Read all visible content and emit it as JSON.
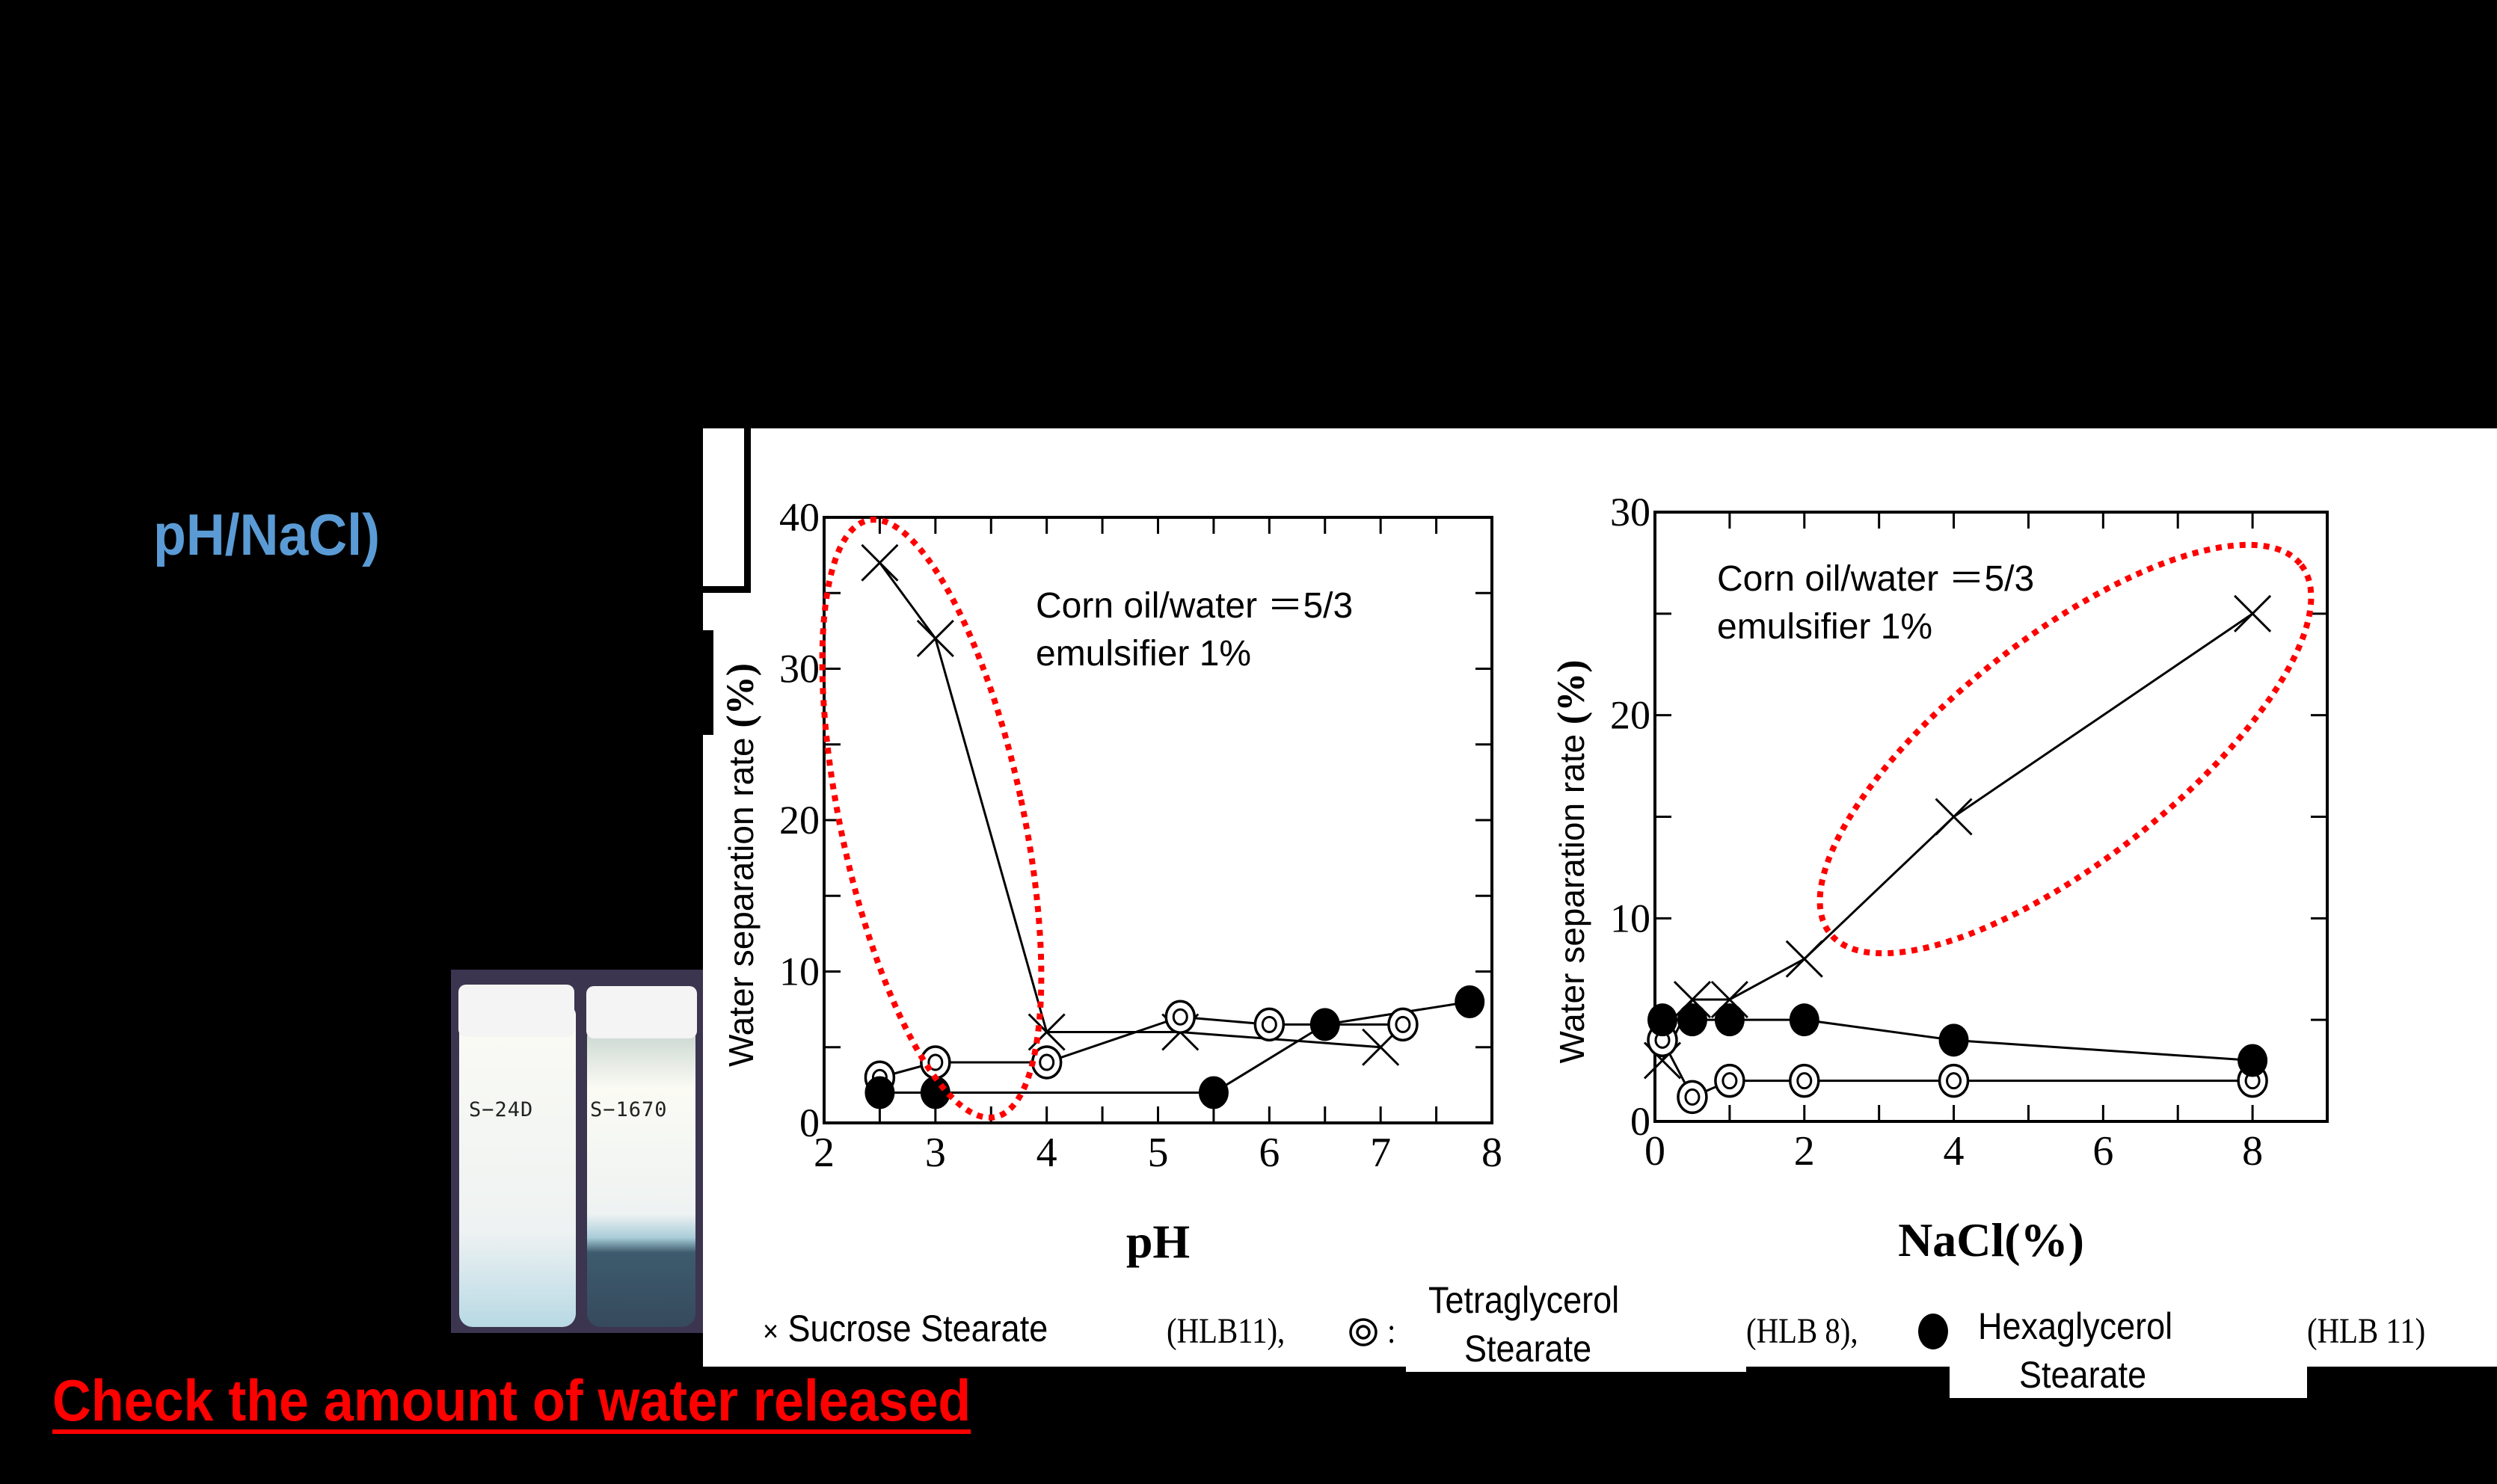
{
  "slide": {
    "subtitle": "pH/NaCl)",
    "caption": "Check the amount of water released",
    "colors": {
      "subtitle": "#5b9bd5",
      "caption": "#ff0000",
      "highlight_ellipse": "#ff0000",
      "background": "#000000"
    }
  },
  "photo": {
    "vials": [
      {
        "label": "S−24D",
        "state": "stable emulsion"
      },
      {
        "label": "S−1670",
        "state": "water separated at bottom"
      }
    ]
  },
  "legend": {
    "items": [
      {
        "symbol": "×",
        "name": "Sucrose Stearate",
        "hlb": "(HLB11),",
        "icon": "cross-marker-icon"
      },
      {
        "symbol": "◎",
        "name_line1": "Tetraglycerol",
        "name_line2": "Stearate",
        "hlb": "(HLB 8),",
        "icon": "double-circle-marker-icon"
      },
      {
        "symbol": "●",
        "name_line1": "Hexaglycerol",
        "name_line2": "Stearate",
        "hlb": "(HLB 11)",
        "icon": "filled-circle-marker-icon"
      }
    ],
    "sep_colon": ":"
  },
  "chart_data": [
    {
      "type": "line",
      "title": "",
      "annotation_line1": "Corn oil/water ＝5/3",
      "annotation_line2": "emulsifier 1%",
      "xlabel": "pH",
      "ylabel": "Water separation rate",
      "ylabel_unit": "(%)",
      "xlim": [
        2,
        8
      ],
      "ylim": [
        0,
        40
      ],
      "xticks": [
        "2",
        "3",
        "4",
        "5",
        "6",
        "7",
        "8"
      ],
      "yticks": [
        "0",
        "10",
        "20",
        "30",
        "40"
      ],
      "grid": false,
      "highlight": "red dotted ellipse around Sucrose Stearate pH 2.5–4",
      "series": [
        {
          "name": "Sucrose Stearate (HLB11)",
          "marker": "x",
          "x": [
            2.5,
            3,
            4,
            5.2,
            7
          ],
          "y": [
            37,
            32,
            6,
            6,
            5
          ]
        },
        {
          "name": "Tetraglycerol Stearate (HLB 8)",
          "marker": "double-circle",
          "x": [
            2.5,
            3,
            4,
            5.2,
            6,
            7.2
          ],
          "y": [
            3,
            4,
            4,
            7,
            6.5,
            6.5
          ]
        },
        {
          "name": "Hexaglycerol Stearate (HLB 11)",
          "marker": "filled-circle",
          "x": [
            2.5,
            3,
            5.5,
            6.5,
            7.8
          ],
          "y": [
            2,
            2,
            2,
            6.5,
            8
          ]
        }
      ]
    },
    {
      "type": "line",
      "title": "",
      "annotation_line1": "Corn oil/water ＝5/3",
      "annotation_line2": "emulsifier 1%",
      "xlabel": "NaCl(%)",
      "ylabel": "Water separation rate",
      "ylabel_unit": "(%)",
      "xlim": [
        0,
        9
      ],
      "ylim": [
        0,
        30
      ],
      "xticks": [
        "0",
        "2",
        "4",
        "6",
        "8"
      ],
      "yticks": [
        "0",
        "10",
        "20",
        "30"
      ],
      "grid": false,
      "highlight": "red dotted ellipse around Sucrose Stearate NaCl 1–8%",
      "series": [
        {
          "name": "Sucrose Stearate (HLB11)",
          "marker": "x",
          "x": [
            0.1,
            0.5,
            1,
            2,
            4,
            8
          ],
          "y": [
            3,
            6,
            6,
            8,
            15,
            25
          ]
        },
        {
          "name": "Tetraglycerol Stearate (HLB 8)",
          "marker": "double-circle",
          "x": [
            0.1,
            0.5,
            1,
            2,
            4,
            8
          ],
          "y": [
            4,
            1.2,
            2,
            2,
            2,
            2
          ]
        },
        {
          "name": "Hexaglycerol Stearate (HLB 11)",
          "marker": "filled-circle",
          "x": [
            0.1,
            0.5,
            1,
            2,
            4,
            8
          ],
          "y": [
            5,
            5,
            5,
            5,
            4,
            3
          ]
        }
      ]
    }
  ]
}
